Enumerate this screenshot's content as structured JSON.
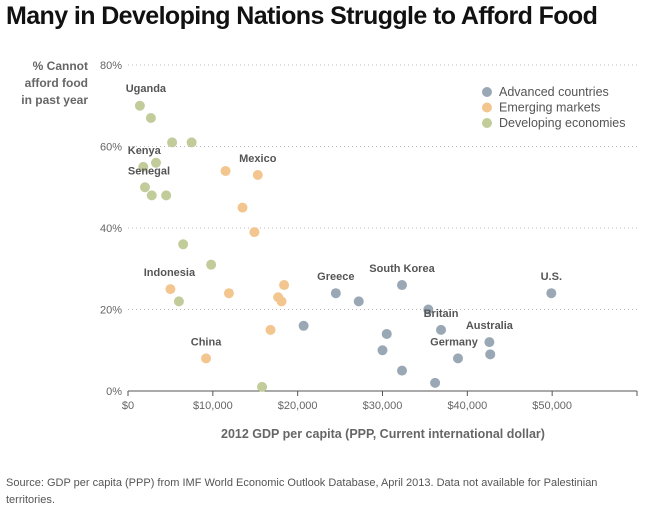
{
  "title": "Many in Developing Nations Struggle to Afford Food",
  "source": "Source: GDP per capita (PPP) from IMF World Economic Outlook Database, April 2013. Data not available for Palestinian territories.",
  "chart_data": {
    "type": "scatter",
    "title": "Many in Developing Nations Struggle to Afford Food",
    "xlabel": "2012 GDP per capita (PPP, Current international dollar)",
    "ylabel_lines": [
      "% Cannot",
      "afford food",
      "in past year"
    ],
    "xlim": [
      0,
      60000
    ],
    "ylim": [
      0,
      80
    ],
    "x_ticks": [
      0,
      10000,
      20000,
      30000,
      40000,
      50000
    ],
    "x_tick_labels": [
      "$0",
      "$10,000",
      "$20,000",
      "$30,000",
      "$40,000",
      "$50,000"
    ],
    "y_ticks": [
      0,
      20,
      40,
      60,
      80
    ],
    "y_tick_labels": [
      "0%",
      "20%",
      "40%",
      "60%",
      "80%"
    ],
    "grid": "horizontal dotted",
    "legend_position": "top-right",
    "series": [
      {
        "name": "Advanced countries",
        "color": "#9aa8b5",
        "points": [
          {
            "x": 20700,
            "y": 16
          },
          {
            "x": 24500,
            "y": 24,
            "label": "Greece"
          },
          {
            "x": 27200,
            "y": 22
          },
          {
            "x": 30000,
            "y": 10
          },
          {
            "x": 30500,
            "y": 14
          },
          {
            "x": 32300,
            "y": 26,
            "label": "South Korea"
          },
          {
            "x": 32300,
            "y": 5
          },
          {
            "x": 35400,
            "y": 20
          },
          {
            "x": 36200,
            "y": 2
          },
          {
            "x": 36900,
            "y": 15,
            "label": "Britain"
          },
          {
            "x": 38900,
            "y": 8,
            "label": "Germany"
          },
          {
            "x": 42600,
            "y": 12,
            "label": "Australia"
          },
          {
            "x": 42700,
            "y": 9
          },
          {
            "x": 49900,
            "y": 24,
            "label": "U.S."
          }
        ]
      },
      {
        "name": "Emerging markets",
        "color": "#f3c690",
        "points": [
          {
            "x": 5000,
            "y": 25,
            "label": "Indonesia"
          },
          {
            "x": 9200,
            "y": 8,
            "label": "China"
          },
          {
            "x": 11500,
            "y": 54
          },
          {
            "x": 11900,
            "y": 24
          },
          {
            "x": 13500,
            "y": 45
          },
          {
            "x": 14900,
            "y": 39
          },
          {
            "x": 15300,
            "y": 53,
            "label": "Mexico"
          },
          {
            "x": 16800,
            "y": 15
          },
          {
            "x": 17700,
            "y": 23
          },
          {
            "x": 18100,
            "y": 22
          },
          {
            "x": 18400,
            "y": 26
          }
        ]
      },
      {
        "name": "Developing economies",
        "color": "#c2cc9a",
        "points": [
          {
            "x": 1400,
            "y": 70,
            "label": "Uganda"
          },
          {
            "x": 1800,
            "y": 55,
            "label": "Kenya"
          },
          {
            "x": 2000,
            "y": 50,
            "label": "Senegal"
          },
          {
            "x": 2700,
            "y": 67
          },
          {
            "x": 2800,
            "y": 48
          },
          {
            "x": 3300,
            "y": 56
          },
          {
            "x": 4500,
            "y": 48
          },
          {
            "x": 5200,
            "y": 61
          },
          {
            "x": 6000,
            "y": 22
          },
          {
            "x": 6500,
            "y": 36
          },
          {
            "x": 7500,
            "y": 61
          },
          {
            "x": 9800,
            "y": 31
          },
          {
            "x": 15800,
            "y": 1
          }
        ]
      }
    ]
  }
}
